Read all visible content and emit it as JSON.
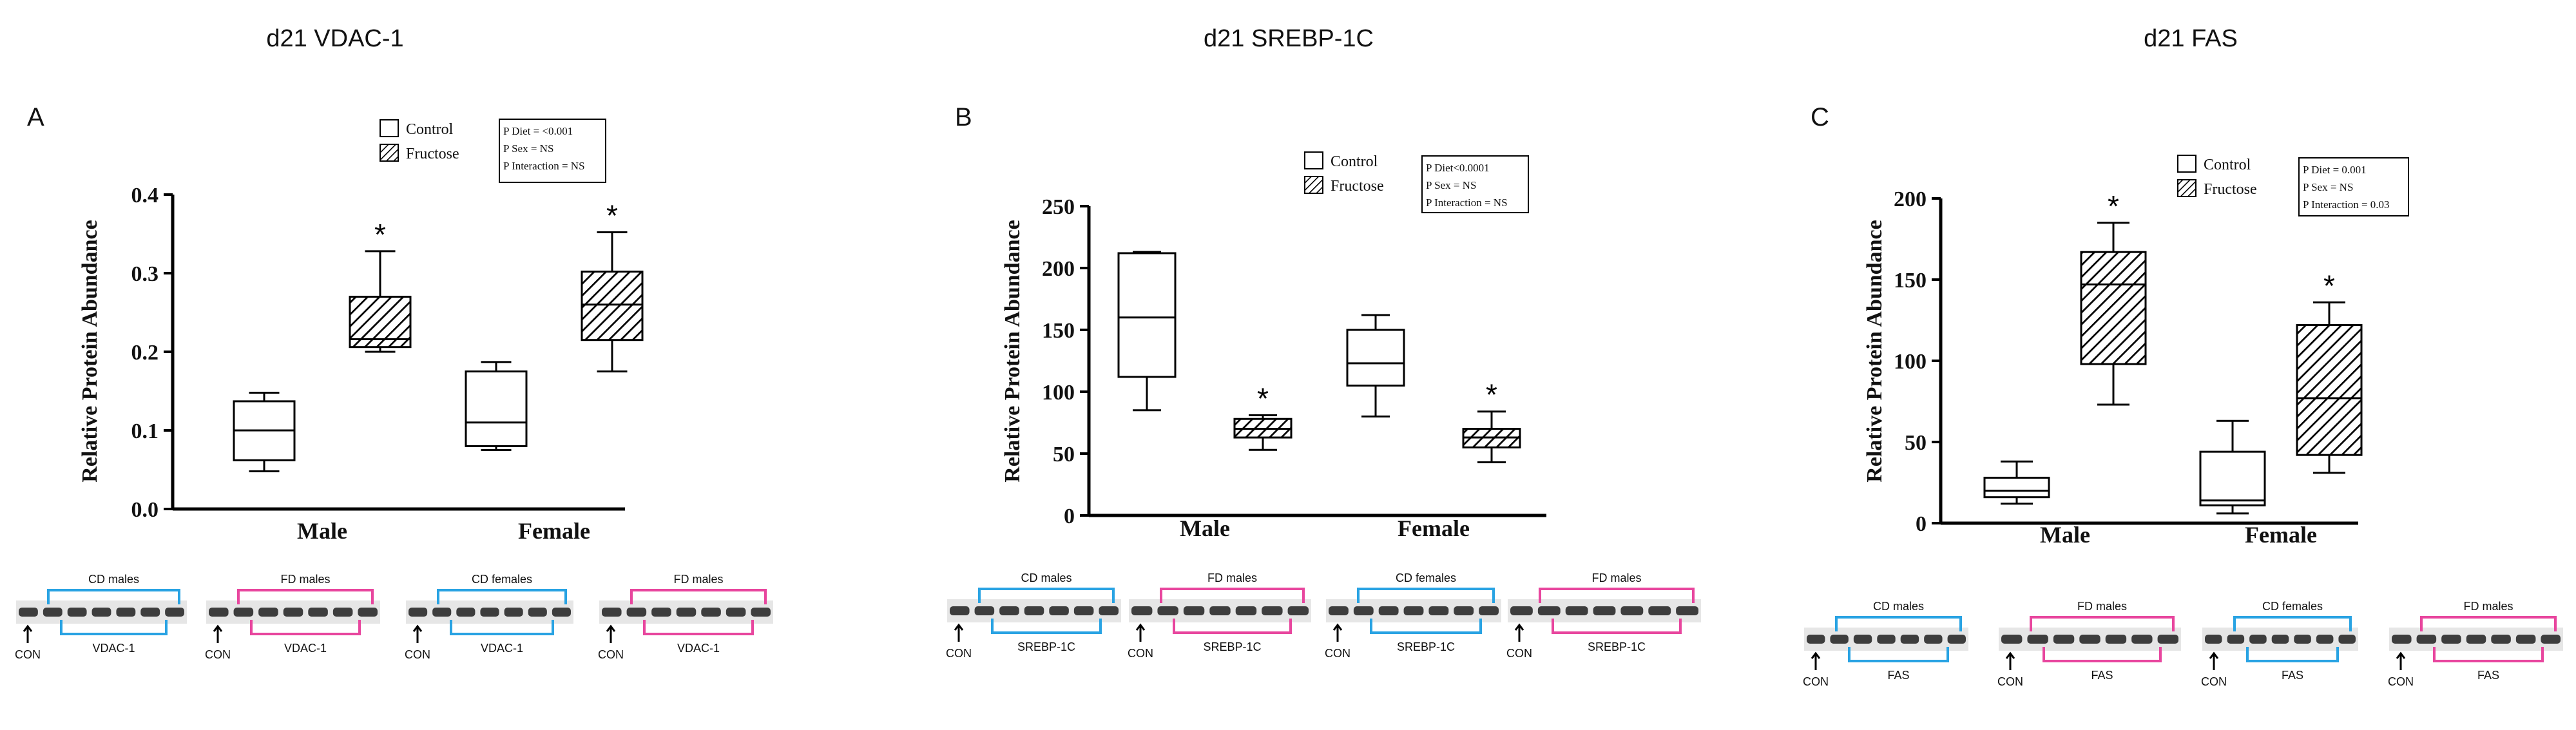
{
  "colors": {
    "cd_bracket": "#29a3e3",
    "fd_bracket": "#e8469e",
    "axis": "#000000",
    "blot_bg": "#e6e6e6",
    "band": "#1e1e1e"
  },
  "icons": [
    "up-arrow-icon"
  ],
  "chart_data": [
    {
      "type": "box",
      "title": "d21 VDAC-1",
      "panel_label": "A",
      "ylabel": "Relative Protein Abundance",
      "ylim": [
        0,
        0.4
      ],
      "yticks": [
        "0.0",
        "0.1",
        "0.2",
        "0.3",
        "0.4"
      ],
      "ytick_values": [
        0,
        0.1,
        0.2,
        0.3,
        0.4
      ],
      "categories": [
        "Male",
        "Female"
      ],
      "legend": [
        "Control",
        "Fructose"
      ],
      "stats": [
        "P Diet = <0.001",
        "P Sex = NS",
        "P Interaction = NS"
      ],
      "series": [
        {
          "name": "Control",
          "boxes": [
            {
              "min": 0.048,
              "q1": 0.062,
              "median": 0.1,
              "q3": 0.137,
              "max": 0.148
            },
            {
              "min": 0.075,
              "q1": 0.08,
              "median": 0.11,
              "q3": 0.175,
              "max": 0.187
            }
          ]
        },
        {
          "name": "Fructose",
          "boxes": [
            {
              "min": 0.2,
              "q1": 0.206,
              "median": 0.216,
              "q3": 0.27,
              "max": 0.328,
              "star": "*"
            },
            {
              "min": 0.175,
              "q1": 0.215,
              "median": 0.26,
              "q3": 0.302,
              "max": 0.352,
              "star": "*"
            }
          ]
        }
      ],
      "blot": {
        "groups": [
          "CD males",
          "FD males",
          "CD females",
          "FD males"
        ],
        "con_label": "CON",
        "protein_label": "VDAC-1"
      }
    },
    {
      "type": "box",
      "title": "d21 SREBP-1C",
      "panel_label": "B",
      "ylabel": "Relative Protein Abundance",
      "ylim": [
        0,
        250
      ],
      "yticks": [
        "0",
        "50",
        "100",
        "150",
        "200",
        "250"
      ],
      "ytick_values": [
        0,
        50,
        100,
        150,
        200,
        250
      ],
      "categories": [
        "Male",
        "Female"
      ],
      "legend": [
        "Control",
        "Fructose"
      ],
      "stats": [
        "P Diet<0.0001",
        "P Sex = NS",
        "P Interaction = NS"
      ],
      "series": [
        {
          "name": "Control",
          "boxes": [
            {
              "min": 85,
              "q1": 112,
              "median": 160,
              "q3": 212,
              "max": 213
            },
            {
              "min": 80,
              "q1": 105,
              "median": 123,
              "q3": 150,
              "max": 162
            }
          ]
        },
        {
          "name": "Fructose",
          "boxes": [
            {
              "min": 53,
              "q1": 63,
              "median": 70,
              "q3": 78,
              "max": 81,
              "star": "*"
            },
            {
              "min": 43,
              "q1": 55,
              "median": 63,
              "q3": 70,
              "max": 84,
              "star": "*"
            }
          ]
        }
      ],
      "blot": {
        "groups": [
          "CD males",
          "FD males",
          "CD females",
          "FD males"
        ],
        "con_label": "CON",
        "protein_label": "SREBP-1C"
      }
    },
    {
      "type": "box",
      "title": "d21 FAS",
      "panel_label": "C",
      "ylabel": "Relative Protein Abundance",
      "ylim": [
        0,
        200
      ],
      "yticks": [
        "0",
        "50",
        "100",
        "150",
        "200"
      ],
      "ytick_values": [
        0,
        50,
        100,
        150,
        200
      ],
      "categories": [
        "Male",
        "Female"
      ],
      "legend": [
        "Control",
        "Fructose"
      ],
      "stats": [
        "P Diet = 0.001",
        "P Sex = NS",
        "P Interaction = 0.03"
      ],
      "series": [
        {
          "name": "Control",
          "boxes": [
            {
              "min": 12,
              "q1": 16,
              "median": 20,
              "q3": 28,
              "max": 38
            },
            {
              "min": 6,
              "q1": 11,
              "median": 14,
              "q3": 44,
              "max": 63
            }
          ]
        },
        {
          "name": "Fructose",
          "boxes": [
            {
              "min": 73,
              "q1": 98,
              "median": 147,
              "q3": 167,
              "max": 185,
              "star": "*"
            },
            {
              "min": 31,
              "q1": 42,
              "median": 77,
              "q3": 122,
              "max": 136,
              "star": "*"
            }
          ]
        }
      ],
      "blot": {
        "groups": [
          "CD males",
          "FD males",
          "CD females",
          "FD males"
        ],
        "con_label": "CON",
        "protein_label": "FAS"
      }
    }
  ]
}
